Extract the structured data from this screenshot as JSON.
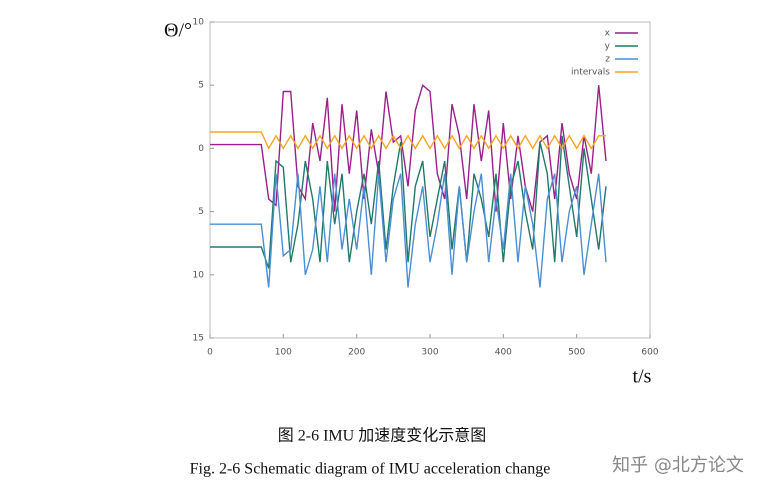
{
  "chart_data": {
    "type": "line",
    "y_label": "Θ/°",
    "x_label": "t/s",
    "caption_cn": "图 2-6 IMU 加速度变化示意图",
    "caption_en": "Fig. 2-6 Schematic diagram of IMU acceleration change",
    "watermark": "知乎 @北方论文",
    "xlim": [
      0,
      600
    ],
    "xticks": [
      0,
      100,
      200,
      300,
      400,
      500,
      600
    ],
    "ylim": [
      -15,
      10
    ],
    "yticks": [
      {
        "value": -15,
        "label": "15"
      },
      {
        "value": -10,
        "label": "10"
      },
      {
        "value": -5,
        "label": "5"
      },
      0,
      5,
      10
    ],
    "legend": "top-right",
    "grid": false,
    "x": [
      0,
      10,
      20,
      30,
      40,
      50,
      60,
      70,
      80,
      90,
      100,
      110,
      120,
      130,
      140,
      150,
      160,
      170,
      180,
      190,
      200,
      210,
      220,
      230,
      240,
      250,
      260,
      270,
      280,
      290,
      300,
      310,
      320,
      330,
      340,
      350,
      360,
      370,
      380,
      390,
      400,
      410,
      420,
      430,
      440,
      450,
      460,
      470,
      480,
      490,
      500,
      510,
      520,
      530,
      540
    ],
    "series": [
      {
        "name": "x",
        "color": "#9b1f8c",
        "values": [
          0.3,
          0.3,
          0.3,
          0.3,
          0.3,
          0.3,
          0.3,
          0.3,
          -4,
          -4.5,
          4.5,
          4.5,
          -3,
          -4,
          2,
          -1,
          4,
          -5,
          3.5,
          -2,
          3,
          -4,
          1.5,
          -2,
          4.5,
          0.5,
          1,
          -3,
          3,
          5,
          4.5,
          -2,
          -4,
          3.5,
          1,
          -4,
          3.5,
          -1,
          3,
          -5,
          2,
          -4,
          1,
          -3,
          -5,
          0.5,
          1,
          -4,
          2,
          -2,
          -4,
          1,
          -2,
          5,
          -1
        ]
      },
      {
        "name": "y",
        "color": "#1f7a6a",
        "values": [
          -7.8,
          -7.8,
          -7.8,
          -7.8,
          -7.8,
          -7.8,
          -7.8,
          -7.8,
          -9.5,
          -1,
          -1.5,
          -9,
          -6,
          -1,
          -4,
          -9,
          -1,
          -6,
          -2,
          -9,
          -5,
          -2,
          -6,
          -1,
          -8,
          -3,
          0.5,
          -9,
          -3,
          -1,
          -7,
          -4,
          -1,
          -8,
          -3,
          -9,
          -2,
          -4,
          -7,
          -2,
          -9,
          -3,
          -1,
          -5,
          -8,
          0.5,
          -2,
          -9,
          1,
          -3,
          -7,
          0,
          -4,
          -8,
          -3
        ]
      },
      {
        "name": "z",
        "color": "#4a8fd4",
        "values": [
          -6,
          -6,
          -6,
          -6,
          -6,
          -6,
          -6,
          -6,
          -11,
          -2,
          -8.5,
          -8,
          -2,
          -10,
          -8,
          -3,
          -9,
          -2,
          -8,
          -4,
          -8,
          -3,
          -10,
          -2,
          -9,
          -4,
          -2,
          -11,
          -6,
          -3,
          -9,
          -6,
          -2,
          -10,
          -3,
          -9,
          -5,
          -2,
          -9,
          -4,
          -8,
          -2,
          -9,
          -3,
          -6,
          -11,
          -4,
          -2,
          -9,
          -5,
          -3,
          -10,
          -6,
          -2,
          -9
        ]
      },
      {
        "name": "intervals",
        "color": "#f5a623",
        "values": [
          1.3,
          1.3,
          1.3,
          1.3,
          1.3,
          1.3,
          1.3,
          1.3,
          0,
          1,
          0,
          1,
          0,
          1,
          0,
          1,
          0,
          1,
          0,
          1,
          0,
          1,
          0,
          1,
          0,
          1,
          0,
          1,
          0,
          1,
          0,
          1,
          0,
          1,
          0,
          1,
          0,
          1,
          0,
          1,
          0,
          1,
          0,
          1,
          0,
          1,
          0,
          1,
          0,
          1,
          0,
          1,
          0,
          1,
          1
        ]
      }
    ]
  }
}
